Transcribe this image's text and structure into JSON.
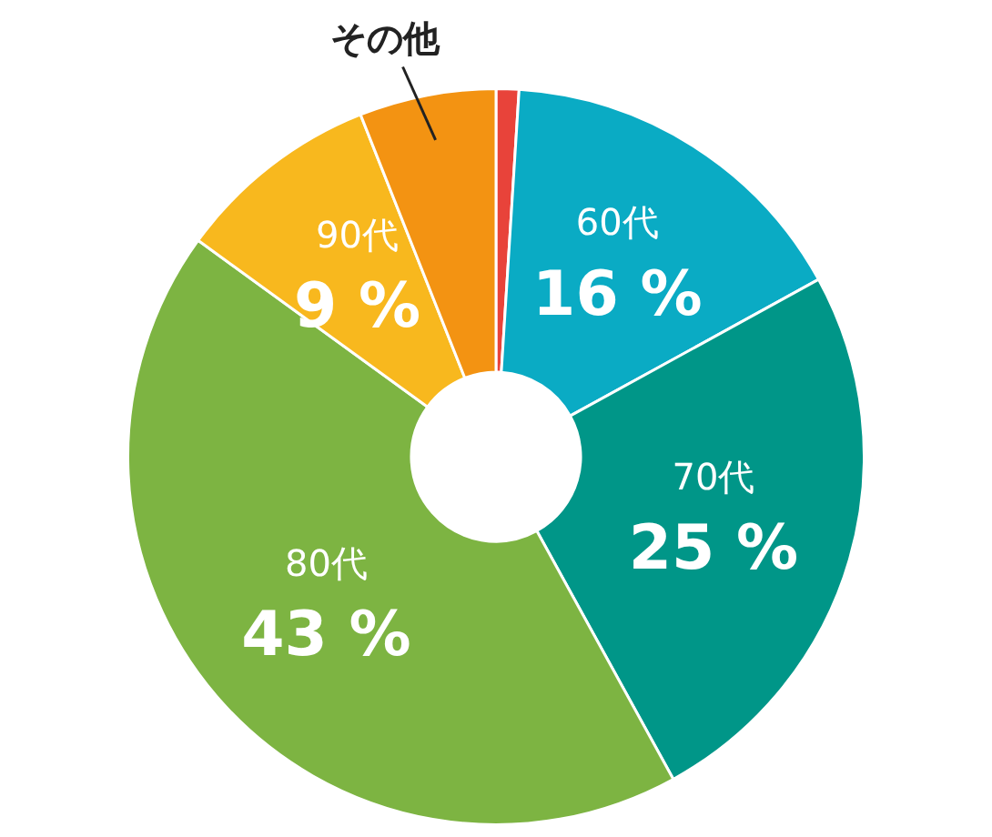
{
  "chart_data": {
    "type": "donut",
    "categories": [
      null,
      "60代",
      "70代",
      "80代",
      "90代",
      "その他"
    ],
    "values": [
      1,
      16,
      25,
      43,
      9,
      6
    ],
    "value_labels": [
      null,
      "16 %",
      "25 %",
      "43 %",
      "9 %",
      null
    ],
    "colors": [
      "#e8433a",
      "#0aabc4",
      "#009688",
      "#7db442",
      "#f8b81e",
      "#f39312"
    ],
    "legend": false
  }
}
